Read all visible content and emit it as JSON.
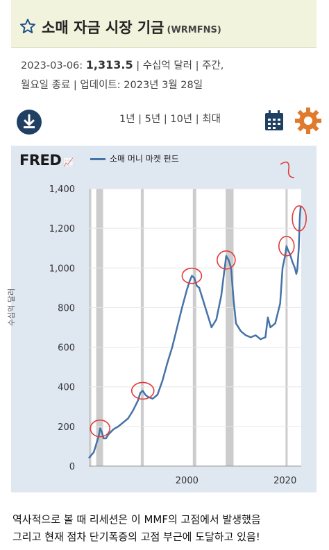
{
  "header": {
    "title": "소매 자금 시장 기금",
    "code": "(WRMFNS)",
    "star_icon": "star-outline-icon"
  },
  "meta": {
    "date": "2023-03-06:",
    "value": "1,313.5",
    "line1_rest": " | 수십억 달러 | 주간,",
    "line2": "월요일 종료 | 업데이트: 2023년 3월 28일"
  },
  "toolbar": {
    "download_icon": "download-icon",
    "periods": "1년 | 5년 | 10년 | 최대",
    "calendar_icon": "calendar-icon",
    "settings_icon": "gear-icon"
  },
  "fred": {
    "logo": "FRED",
    "series_name": "소매 머니 마켓 펀드",
    "line_color": "#4572a7",
    "recession_color": "#cccccc"
  },
  "chart_data": {
    "type": "line",
    "ylabel": "수십억 달러",
    "ylim": [
      0,
      1400
    ],
    "yticks": [
      0,
      200,
      400,
      600,
      800,
      1000,
      1200,
      1400
    ],
    "ytick_labels": [
      "0",
      "200",
      "400",
      "600",
      "800",
      "1,000",
      "1,200",
      "1,400"
    ],
    "xlim": [
      1980,
      2023.3
    ],
    "xticks": [
      2000,
      2020
    ],
    "xtick_labels": [
      "2000",
      "2020"
    ],
    "grid": true,
    "recessions": [
      [
        1980.0,
        1980.5
      ],
      [
        1981.5,
        1982.9
      ],
      [
        1990.6,
        1991.2
      ],
      [
        2001.2,
        2001.9
      ],
      [
        2007.9,
        2009.5
      ],
      [
        2020.1,
        2020.4
      ]
    ],
    "series": [
      {
        "name": "소매 머니 마켓 펀드",
        "x": [
          1980.0,
          1980.5,
          1981.0,
          1981.5,
          1982.0,
          1982.3,
          1982.6,
          1983.0,
          1983.5,
          1984.0,
          1985.0,
          1986.0,
          1987.0,
          1988.0,
          1989.0,
          1990.0,
          1990.5,
          1991.0,
          1991.5,
          1992.0,
          1993.0,
          1994.0,
          1995.0,
          1996.0,
          1997.0,
          1998.0,
          1999.0,
          2000.0,
          2000.5,
          2001.0,
          2001.5,
          2002.0,
          2002.5,
          2003.0,
          2004.0,
          2005.0,
          2006.0,
          2007.0,
          2007.5,
          2008.0,
          2008.5,
          2009.0,
          2009.5,
          2010.0,
          2011.0,
          2012.0,
          2013.0,
          2014.0,
          2015.0,
          2016.0,
          2016.5,
          2017.0,
          2018.0,
          2019.0,
          2019.5,
          2020.0,
          2020.3,
          2020.6,
          2021.0,
          2021.5,
          2022.0,
          2022.3,
          2022.5,
          2022.8,
          2023.0,
          2023.18
        ],
        "y": [
          40,
          55,
          70,
          110,
          150,
          190,
          175,
          140,
          140,
          160,
          185,
          200,
          220,
          240,
          280,
          330,
          370,
          380,
          360,
          350,
          340,
          360,
          430,
          520,
          600,
          700,
          800,
          890,
          930,
          960,
          950,
          910,
          900,
          860,
          780,
          700,
          740,
          860,
          960,
          1060,
          1040,
          1000,
          840,
          720,
          680,
          660,
          650,
          660,
          640,
          650,
          750,
          700,
          720,
          820,
          1000,
          1060,
          1110,
          1090,
          1070,
          1030,
          1000,
          970,
          990,
          1100,
          1250,
          1313.5
        ]
      }
    ]
  },
  "annotations": {
    "circle_color": "#e03b3b"
  },
  "caption": {
    "line1": "역사적으로 볼 때 리세션은 이 MMF의 고점에서 발생했음",
    "line2": "그리고 현재 점차 단기폭증의 고점 부근에 도달하고 있음!"
  }
}
